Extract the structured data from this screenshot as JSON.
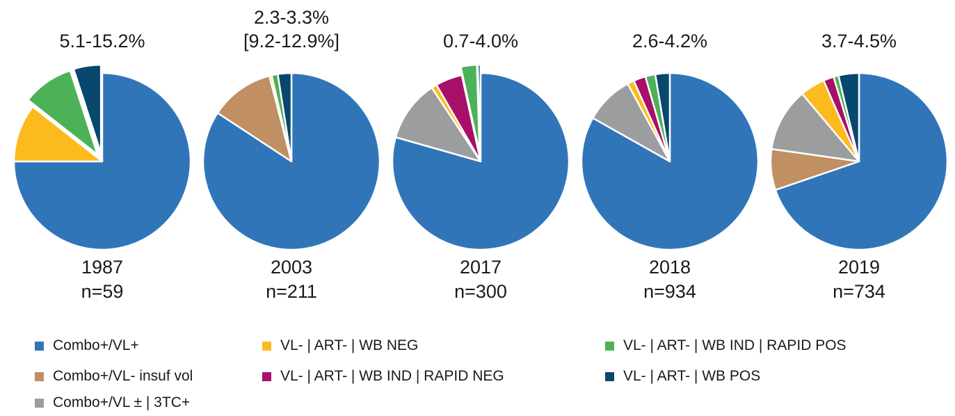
{
  "legend": [
    {
      "name": "Combo+/VL+",
      "color": "#3175b9"
    },
    {
      "name": "VL- | ART- | WB NEG",
      "color": "#fbbb1e"
    },
    {
      "name": "VL- | ART- | WB IND | RAPID POS",
      "color": "#4db257"
    },
    {
      "name": "Combo+/VL- insuf vol",
      "color": "#c08f64"
    },
    {
      "name": "VL- | ART- | WB IND | RAPID NEG",
      "color": "#a80f68"
    },
    {
      "name": "VL- | ART- | WB POS",
      "color": "#08476e"
    },
    {
      "name": "Combo+/VL ± | 3TC+",
      "color": "#9c9d9e"
    }
  ],
  "chart_data": {
    "type": "pie",
    "unit": "%",
    "legend_placement": "bottom",
    "series_names": [
      "Combo+/VL+",
      "Combo+/VL- insuf vol",
      "Combo+/VL ± | 3TC+",
      "VL- | ART- | WB NEG",
      "VL- | ART- | WB IND | RAPID NEG",
      "VL- | ART- | WB IND | RAPID POS",
      "VL- | ART- | WB POS"
    ],
    "pies": [
      {
        "year": "1987",
        "n": "n=59",
        "annotation": [
          "5.1-15.2%"
        ],
        "values": [
          75.0,
          0,
          0,
          10.6,
          0,
          9.4,
          5.0
        ],
        "exploded": [
          "VL- | ART- | WB IND | RAPID POS",
          "VL- | ART- | WB POS"
        ]
      },
      {
        "year": "2003",
        "n": "n=211",
        "annotation": [
          "2.3-3.3%",
          "[9.2-12.9%]"
        ],
        "values": [
          81.8,
          11.4,
          0,
          0.4,
          0,
          1.1,
          2.4
        ],
        "exploded": []
      },
      {
        "year": "2017",
        "n": "n=300",
        "annotation": [
          "0.7-4.0%"
        ],
        "values": [
          81.0,
          0,
          11.5,
          1.0,
          5.0,
          3.0,
          0.5
        ],
        "exploded": [
          "VL- | ART- | WB IND | RAPID POS",
          "VL- | ART- | WB POS"
        ]
      },
      {
        "year": "2018",
        "n": "n=934",
        "annotation": [
          "2.6-4.2%"
        ],
        "values": [
          82.0,
          0,
          8.8,
          1.2,
          2.2,
          1.8,
          2.6
        ],
        "exploded": []
      },
      {
        "year": "2019",
        "n": "n=734",
        "annotation": [
          "3.7-4.5%"
        ],
        "values": [
          69.0,
          7.4,
          11.5,
          4.5,
          1.9,
          0.9,
          3.7
        ],
        "exploded": []
      }
    ]
  }
}
